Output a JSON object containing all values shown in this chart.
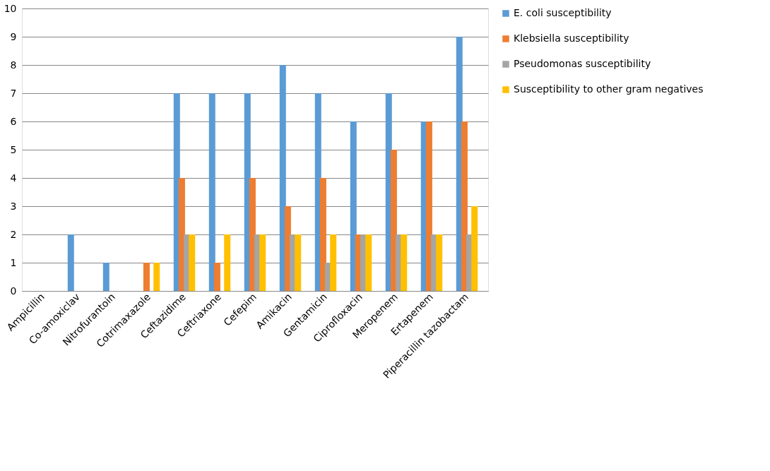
{
  "chart_data": {
    "type": "bar",
    "categories": [
      "Ampicillin",
      "Co-amoxiclav",
      "Nitrofurantoin",
      "Cotrimaxazole",
      "Ceftazidime",
      "Ceftriaxone",
      "Cefepim",
      "Amikacin",
      "Gentamicin",
      "Ciprofloxacin",
      "Meropenem",
      "Ertapenem",
      "Piperacillin tazobactam"
    ],
    "series": [
      {
        "name": "E. coli susceptibility",
        "color": "#5b9bd5",
        "values": [
          0,
          2,
          1,
          0,
          7,
          7,
          7,
          8,
          7,
          6,
          7,
          6,
          9
        ]
      },
      {
        "name": "Klebsiella susceptibility",
        "color": "#ed7d31",
        "values": [
          0,
          0,
          0,
          1,
          4,
          1,
          4,
          3,
          4,
          2,
          5,
          6,
          6
        ]
      },
      {
        "name": "Pseudomonas susceptibility",
        "color": "#a5a5a5",
        "values": [
          0,
          0,
          0,
          0,
          2,
          0,
          2,
          2,
          1,
          2,
          2,
          2,
          2
        ]
      },
      {
        "name": "Susceptibility to other gram negatives",
        "color": "#ffc000",
        "values": [
          0,
          0,
          0,
          1,
          2,
          2,
          2,
          2,
          2,
          2,
          2,
          2,
          3
        ]
      }
    ],
    "ylim": [
      0,
      10
    ],
    "yticks": [
      0,
      1,
      2,
      3,
      4,
      5,
      6,
      7,
      8,
      9,
      10
    ],
    "grid": "y",
    "legend": "right"
  }
}
